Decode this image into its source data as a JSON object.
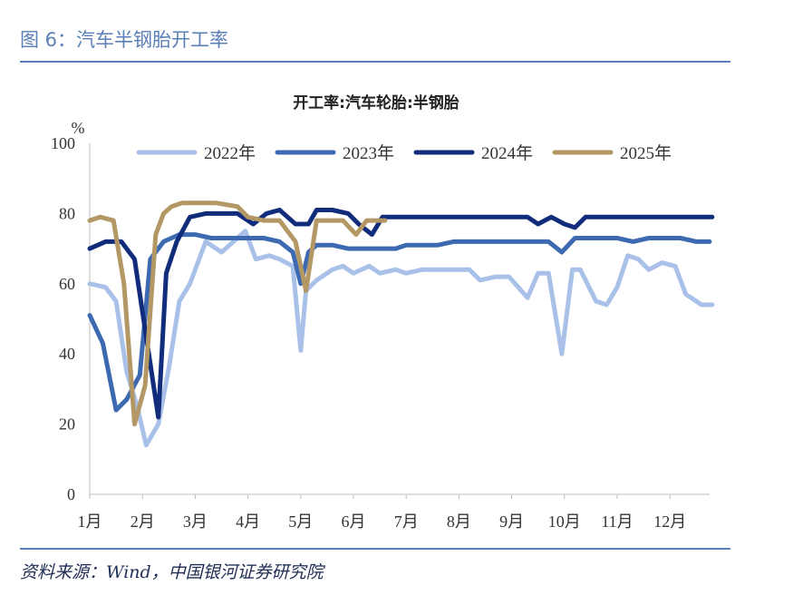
{
  "figure_title": "图 6：汽车半钢胎开工率",
  "source": "资料来源：Wind，中国银河证券研究院",
  "chart_data": {
    "type": "line",
    "title": "开工率:汽车轮胎:半钢胎",
    "ylabel": "%",
    "ylim": [
      0,
      100
    ],
    "yticks": [
      0,
      20,
      40,
      60,
      80,
      100
    ],
    "xticks": [
      "1月",
      "2月",
      "3月",
      "4月",
      "5月",
      "6月",
      "7月",
      "8月",
      "9月",
      "10月",
      "11月",
      "12月"
    ],
    "xlim": [
      1,
      12.9
    ],
    "legend_position": "top",
    "series": [
      {
        "name": "2022年",
        "color": "#a9c1e8",
        "x": [
          1.0,
          1.3,
          1.5,
          1.7,
          1.9,
          2.07,
          2.3,
          2.5,
          2.7,
          2.9,
          3.2,
          3.5,
          3.8,
          3.95,
          4.15,
          4.4,
          4.6,
          4.85,
          5.0,
          5.1,
          5.3,
          5.6,
          5.8,
          6.0,
          6.3,
          6.5,
          6.8,
          7.0,
          7.3,
          7.6,
          7.9,
          8.2,
          8.4,
          8.7,
          8.95,
          9.3,
          9.5,
          9.7,
          9.95,
          10.15,
          10.3,
          10.6,
          10.8,
          11.0,
          11.2,
          11.4,
          11.6,
          11.85,
          12.1,
          12.3,
          12.6,
          12.8
        ],
        "y": [
          60,
          59,
          55,
          35,
          25,
          14,
          20,
          36,
          55,
          60,
          72,
          69,
          73,
          75,
          67,
          68,
          67,
          65,
          41,
          58,
          61,
          64,
          65,
          63,
          65,
          63,
          64,
          63,
          64,
          64,
          64,
          64,
          61,
          62,
          62,
          56,
          63,
          63,
          40,
          64,
          64,
          55,
          54,
          59,
          68,
          67,
          64,
          66,
          65,
          57,
          54,
          54
        ]
      },
      {
        "name": "2023年",
        "color": "#3d69b1",
        "x": [
          1.0,
          1.25,
          1.5,
          1.7,
          1.95,
          2.15,
          2.4,
          2.7,
          3.0,
          3.3,
          3.6,
          4.0,
          4.3,
          4.6,
          4.85,
          5.0,
          5.15,
          5.3,
          5.6,
          5.9,
          6.2,
          6.5,
          6.8,
          7.0,
          7.3,
          7.6,
          7.9,
          8.2,
          8.5,
          8.8,
          9.1,
          9.4,
          9.7,
          9.95,
          10.2,
          10.5,
          10.8,
          11.0,
          11.3,
          11.6,
          11.9,
          12.2,
          12.5,
          12.75
        ],
        "y": [
          51,
          43,
          24,
          27,
          34,
          67,
          72,
          74,
          74,
          73,
          73,
          73,
          73,
          72,
          69,
          60,
          69,
          71,
          71,
          70,
          70,
          70,
          70,
          71,
          71,
          71,
          72,
          72,
          72,
          72,
          72,
          72,
          72,
          69,
          73,
          73,
          73,
          73,
          72,
          73,
          73,
          73,
          72,
          72
        ]
      },
      {
        "name": "2024年",
        "color": "#112c7a",
        "x": [
          1.0,
          1.3,
          1.6,
          1.85,
          2.05,
          2.3,
          2.45,
          2.65,
          2.9,
          3.2,
          3.5,
          3.8,
          4.1,
          4.35,
          4.6,
          4.9,
          5.15,
          5.3,
          5.6,
          5.9,
          6.1,
          6.35,
          6.55,
          6.8,
          7.1,
          7.4,
          7.8,
          8.2,
          8.6,
          9.0,
          9.3,
          9.5,
          9.75,
          10.0,
          10.2,
          10.4,
          10.8,
          11.2,
          11.6,
          12.0,
          12.4,
          12.8
        ],
        "y": [
          70,
          72,
          72,
          67,
          47,
          22,
          63,
          72,
          79,
          80,
          80,
          80,
          77,
          80,
          81,
          77,
          77,
          81,
          81,
          80,
          77,
          74,
          79,
          79,
          79,
          79,
          79,
          79,
          79,
          79,
          79,
          77,
          79,
          77,
          76,
          79,
          79,
          79,
          79,
          79,
          79,
          79
        ]
      },
      {
        "name": "2025年",
        "color": "#b39764",
        "x": [
          1.0,
          1.2,
          1.45,
          1.65,
          1.85,
          2.05,
          2.25,
          2.4,
          2.55,
          2.75,
          3.0,
          3.4,
          3.8,
          4.0,
          4.3,
          4.6,
          4.9,
          5.1,
          5.3,
          5.5,
          5.8,
          6.05,
          6.25,
          6.45,
          6.6
        ],
        "y": [
          78,
          79,
          78,
          60,
          20,
          31,
          74,
          80,
          82,
          83,
          83,
          83,
          82,
          79,
          78,
          78,
          72,
          58,
          78,
          78,
          78,
          74,
          78,
          78,
          78
        ]
      }
    ]
  }
}
